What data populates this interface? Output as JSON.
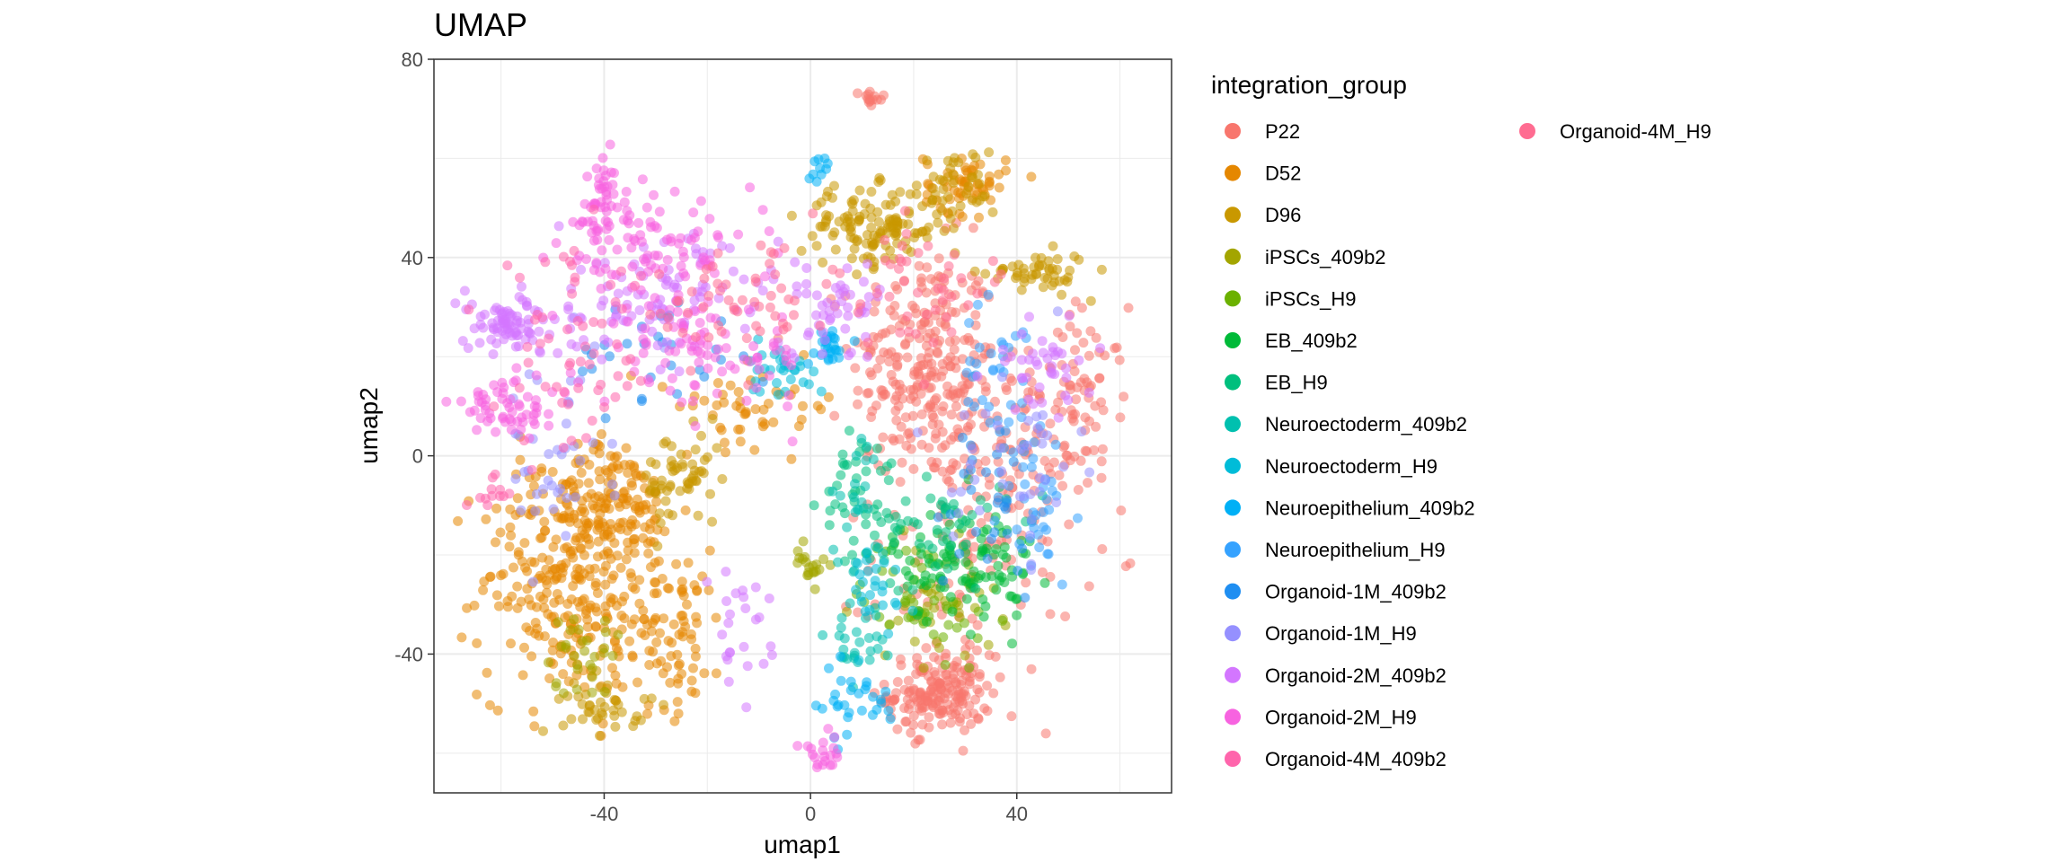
{
  "chart_data": {
    "type": "scatter",
    "title": "UMAP",
    "xlabel": "umap1",
    "ylabel": "umap2",
    "xlim": [
      -73,
      70
    ],
    "ylim": [
      -68,
      80
    ],
    "x_ticks": [
      -40,
      0,
      40
    ],
    "y_ticks": [
      -40,
      0,
      40,
      80
    ],
    "grid": true,
    "legend": {
      "title": "integration_group",
      "placement": "right",
      "columns": 2
    },
    "series": [
      {
        "name": "P22",
        "color": "#F8766D",
        "clusters": [
          {
            "cx": 22,
            "cy": 18,
            "sx": 7,
            "sy": 12,
            "n": 260
          },
          {
            "cx": 25,
            "cy": -48,
            "sx": 5,
            "sy": 4,
            "n": 180
          },
          {
            "cx": 53,
            "cy": 10,
            "sx": 4,
            "sy": 10,
            "n": 70
          },
          {
            "cx": 38,
            "cy": 5,
            "sx": 6,
            "sy": 8,
            "n": 80
          },
          {
            "cx": 32,
            "cy": -20,
            "sx": 10,
            "sy": 12,
            "n": 100
          },
          {
            "cx": 12,
            "cy": 72,
            "sx": 1.2,
            "sy": 1,
            "n": 14
          }
        ]
      },
      {
        "name": "D52",
        "color": "#E58700",
        "clusters": [
          {
            "cx": -48,
            "cy": -25,
            "sx": 8,
            "sy": 12,
            "n": 260
          },
          {
            "cx": -38,
            "cy": -10,
            "sx": 6,
            "sy": 6,
            "n": 140
          },
          {
            "cx": -28,
            "cy": -35,
            "sx": 6,
            "sy": 8,
            "n": 100
          },
          {
            "cx": 30,
            "cy": 55,
            "sx": 4,
            "sy": 3,
            "n": 60
          },
          {
            "cx": -10,
            "cy": 10,
            "sx": 8,
            "sy": 4,
            "n": 50
          }
        ]
      },
      {
        "name": "D96",
        "color": "#C99800",
        "clusters": [
          {
            "cx": 12,
            "cy": 46,
            "sx": 7,
            "sy": 4,
            "n": 130
          },
          {
            "cx": 44,
            "cy": 37,
            "sx": 5,
            "sy": 2,
            "n": 50
          },
          {
            "cx": -40,
            "cy": -50,
            "sx": 4,
            "sy": 3,
            "n": 40
          },
          {
            "cx": -25,
            "cy": -5,
            "sx": 4,
            "sy": 5,
            "n": 60
          },
          {
            "cx": 28,
            "cy": 54,
            "sx": 4,
            "sy": 4,
            "n": 40
          }
        ]
      },
      {
        "name": "iPSCs_409b2",
        "color": "#A3A500",
        "clusters": [
          {
            "cx": 0,
            "cy": -22,
            "sx": 1.5,
            "sy": 2,
            "n": 20
          },
          {
            "cx": -45,
            "cy": -40,
            "sx": 4,
            "sy": 4,
            "n": 30
          },
          {
            "cx": 25,
            "cy": -30,
            "sx": 6,
            "sy": 6,
            "n": 40
          }
        ]
      },
      {
        "name": "iPSCs_H9",
        "color": "#6BB100",
        "clusters": [
          {
            "cx": 22,
            "cy": -28,
            "sx": 6,
            "sy": 6,
            "n": 50
          }
        ]
      },
      {
        "name": "EB_409b2",
        "color": "#00BA38",
        "clusters": [
          {
            "cx": 30,
            "cy": -22,
            "sx": 7,
            "sy": 6,
            "n": 110
          }
        ]
      },
      {
        "name": "EB_H9",
        "color": "#00BF7D",
        "clusters": [
          {
            "cx": 22,
            "cy": -15,
            "sx": 8,
            "sy": 6,
            "n": 60
          },
          {
            "cx": 10,
            "cy": -5,
            "sx": 4,
            "sy": 6,
            "n": 30
          }
        ]
      },
      {
        "name": "Neuroectoderm_409b2",
        "color": "#00C0AF",
        "clusters": [
          {
            "cx": 8,
            "cy": -38,
            "sx": 3,
            "sy": 3,
            "n": 25
          },
          {
            "cx": 10,
            "cy": -10,
            "sx": 3,
            "sy": 8,
            "n": 25
          }
        ]
      },
      {
        "name": "Neuroectoderm_H9",
        "color": "#00BCD8",
        "clusters": [
          {
            "cx": -5,
            "cy": 18,
            "sx": 4,
            "sy": 3,
            "n": 30
          },
          {
            "cx": 12,
            "cy": -28,
            "sx": 4,
            "sy": 5,
            "n": 25
          }
        ]
      },
      {
        "name": "Neuroepithelium_409b2",
        "color": "#00B0F6",
        "clusters": [
          {
            "cx": 3,
            "cy": 22,
            "sx": 2,
            "sy": 2,
            "n": 25
          },
          {
            "cx": 8,
            "cy": -50,
            "sx": 5,
            "sy": 4,
            "n": 30
          },
          {
            "cx": 3,
            "cy": 58,
            "sx": 1.2,
            "sy": 1.2,
            "n": 10
          }
        ]
      },
      {
        "name": "Neuroepithelium_H9",
        "color": "#35A2FF",
        "clusters": [
          {
            "cx": 37,
            "cy": 15,
            "sx": 4,
            "sy": 8,
            "n": 40
          },
          {
            "cx": 45,
            "cy": -10,
            "sx": 4,
            "sy": 8,
            "n": 30
          }
        ]
      },
      {
        "name": "Organoid-1M_409b2",
        "color": "#1F8EF1",
        "clusters": [
          {
            "cx": -30,
            "cy": 20,
            "sx": 8,
            "sy": 6,
            "n": 30
          },
          {
            "cx": 35,
            "cy": -10,
            "sx": 6,
            "sy": 10,
            "n": 30
          }
        ]
      },
      {
        "name": "Organoid-1M_H9",
        "color": "#9590FF",
        "clusters": [
          {
            "cx": 40,
            "cy": 0,
            "sx": 6,
            "sy": 10,
            "n": 40
          },
          {
            "cx": -50,
            "cy": 0,
            "sx": 6,
            "sy": 10,
            "n": 40
          }
        ]
      },
      {
        "name": "Organoid-2M_409b2",
        "color": "#D376FF",
        "clusters": [
          {
            "cx": -58,
            "cy": 26,
            "sx": 5,
            "sy": 3,
            "n": 80
          },
          {
            "cx": -30,
            "cy": 32,
            "sx": 12,
            "sy": 6,
            "n": 100
          },
          {
            "cx": 45,
            "cy": 18,
            "sx": 5,
            "sy": 5,
            "n": 40
          },
          {
            "cx": -14,
            "cy": -36,
            "sx": 3,
            "sy": 6,
            "n": 25
          },
          {
            "cx": 5,
            "cy": 30,
            "sx": 8,
            "sy": 5,
            "n": 50
          }
        ]
      },
      {
        "name": "Organoid-2M_H9",
        "color": "#F763E0",
        "clusters": [
          {
            "cx": -40,
            "cy": 50,
            "sx": 4,
            "sy": 5,
            "n": 60
          },
          {
            "cx": -58,
            "cy": 10,
            "sx": 6,
            "sy": 3,
            "n": 60
          },
          {
            "cx": -30,
            "cy": 40,
            "sx": 10,
            "sy": 5,
            "n": 80
          },
          {
            "cx": -20,
            "cy": 20,
            "sx": 10,
            "sy": 5,
            "n": 80
          },
          {
            "cx": 2,
            "cy": -60,
            "sx": 2,
            "sy": 2,
            "n": 20
          }
        ]
      },
      {
        "name": "Organoid-4M_409b2",
        "color": "#FF65AC",
        "clusters": [
          {
            "cx": -45,
            "cy": 20,
            "sx": 8,
            "sy": 10,
            "n": 60
          },
          {
            "cx": -62,
            "cy": -8,
            "sx": 2,
            "sy": 2,
            "n": 12
          }
        ]
      },
      {
        "name": "Organoid-4M_H9",
        "color": "#FF6C91",
        "clusters": [
          {
            "cx": -15,
            "cy": 30,
            "sx": 8,
            "sy": 6,
            "n": 50
          },
          {
            "cx": 20,
            "cy": 35,
            "sx": 10,
            "sy": 6,
            "n": 50
          }
        ]
      }
    ]
  }
}
